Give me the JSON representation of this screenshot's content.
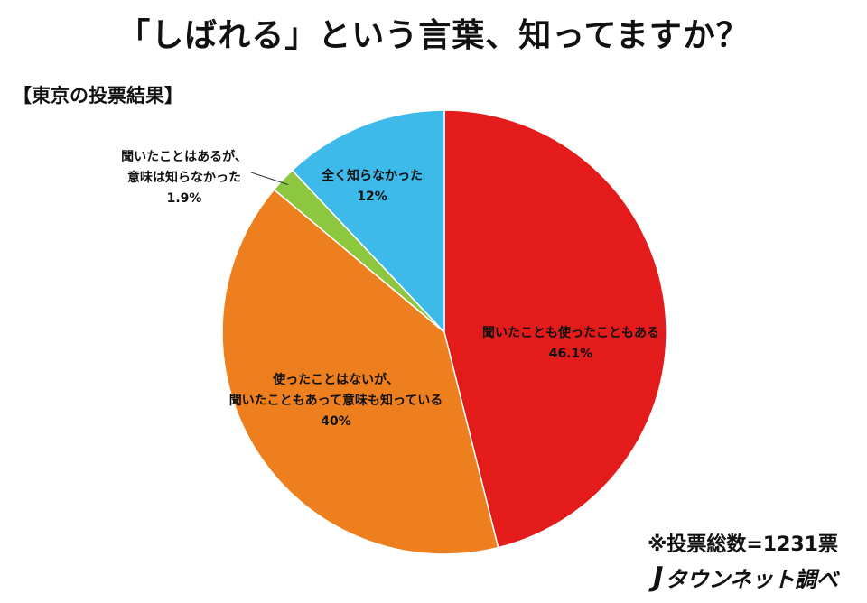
{
  "chart_data": {
    "type": "pie",
    "title": "「しばれる」という言葉、知ってますか？",
    "subtitle": "【東京の投票結果】",
    "slices": [
      {
        "label_lines": [
          "聞いたことも使ったこともある"
        ],
        "value": 46.1,
        "value_label": "46.1%",
        "color": "#e31b1b"
      },
      {
        "label_lines": [
          "使ったことはないが、",
          "聞いたこともあって意味も知っている"
        ],
        "value": 40,
        "value_label": "40%",
        "color": "#ee7f1e"
      },
      {
        "label_lines": [
          "聞いたことはあるが、",
          "意味は知らなかった"
        ],
        "value": 1.9,
        "value_label": "1.9%",
        "color": "#8dc63f"
      },
      {
        "label_lines": [
          "全く知らなかった"
        ],
        "value": 12,
        "value_label": "12%",
        "color": "#3db9ea"
      }
    ]
  },
  "footer": {
    "note": "※投票総数=1231票",
    "credit_logo": "J",
    "credit_text": "タウンネット調べ"
  }
}
